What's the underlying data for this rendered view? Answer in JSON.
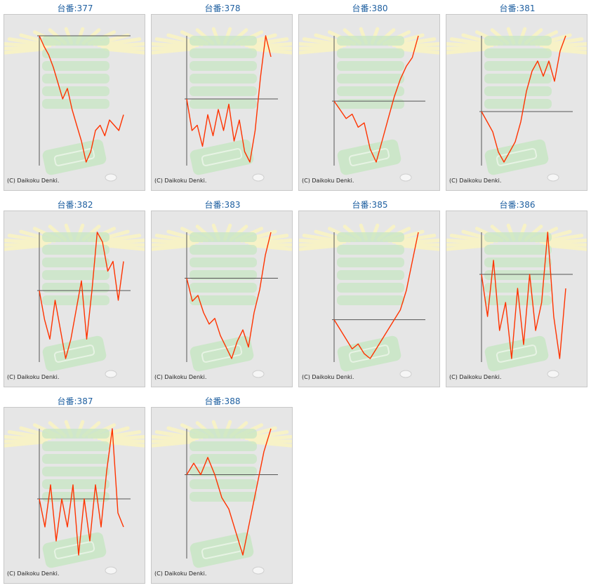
{
  "colors": {
    "title": "#1e5fa0",
    "line": "#ff3300",
    "axis": "#555555",
    "panel_bg": "#e6e6e6",
    "rays": "#f7f2c7",
    "machine": "#c7e5c3"
  },
  "copyright": "(C) Daikoku Denki.",
  "title_prefix": "台番:",
  "chart_data": [
    {
      "type": "line",
      "title": "台番:377",
      "series": [
        {
          "values": [
            0,
            -10,
            -18,
            -30,
            -45,
            -60,
            -50,
            -70,
            -85,
            -100,
            -120,
            -110,
            -90,
            -85,
            -95,
            -80,
            -85,
            -90,
            -75
          ]
        }
      ]
    },
    {
      "type": "line",
      "title": "台番:378",
      "series": [
        {
          "values": [
            0,
            -60,
            -50,
            -90,
            -30,
            -70,
            -20,
            -60,
            -10,
            -80,
            -40,
            -100,
            -120,
            -60,
            40,
            120,
            80
          ]
        }
      ]
    },
    {
      "type": "line",
      "title": "台番:380",
      "series": [
        {
          "values": [
            0,
            -20,
            -40,
            -30,
            -60,
            -50,
            -110,
            -140,
            -90,
            -40,
            10,
            50,
            80,
            100,
            150
          ]
        }
      ]
    },
    {
      "type": "line",
      "title": "台番:381",
      "series": [
        {
          "values": [
            0,
            -10,
            -20,
            -40,
            -50,
            -40,
            -30,
            -10,
            20,
            40,
            50,
            35,
            50,
            30,
            60,
            75
          ]
        }
      ]
    },
    {
      "type": "line",
      "title": "台番:382",
      "series": [
        {
          "values": [
            0,
            -30,
            -50,
            -10,
            -40,
            -70,
            -50,
            -20,
            10,
            -50,
            0,
            60,
            50,
            20,
            30,
            -10,
            30
          ]
        }
      ]
    },
    {
      "type": "line",
      "title": "台番:383",
      "series": [
        {
          "values": [
            0,
            -20,
            -15,
            -30,
            -40,
            -35,
            -50,
            -60,
            -70,
            -55,
            -45,
            -60,
            -30,
            -10,
            20,
            40
          ]
        }
      ]
    },
    {
      "type": "line",
      "title": "台番:385",
      "series": [
        {
          "values": [
            0,
            -10,
            -20,
            -30,
            -25,
            -35,
            -40,
            -30,
            -20,
            -10,
            0,
            10,
            30,
            60,
            90
          ]
        }
      ]
    },
    {
      "type": "line",
      "title": "台番:386",
      "series": [
        {
          "values": [
            0,
            -30,
            10,
            -40,
            -20,
            -60,
            -10,
            -50,
            0,
            -40,
            -20,
            30,
            -30,
            -60,
            -10
          ]
        }
      ]
    },
    {
      "type": "line",
      "title": "台番:387",
      "series": [
        {
          "values": [
            0,
            -20,
            10,
            -30,
            0,
            -20,
            10,
            -40,
            0,
            -30,
            10,
            -20,
            20,
            50,
            -10,
            -20
          ]
        }
      ]
    },
    {
      "type": "line",
      "title": "台番:388",
      "series": [
        {
          "values": [
            0,
            10,
            0,
            15,
            0,
            -20,
            -30,
            -50,
            -70,
            -40,
            -10,
            20,
            40
          ]
        }
      ]
    }
  ]
}
